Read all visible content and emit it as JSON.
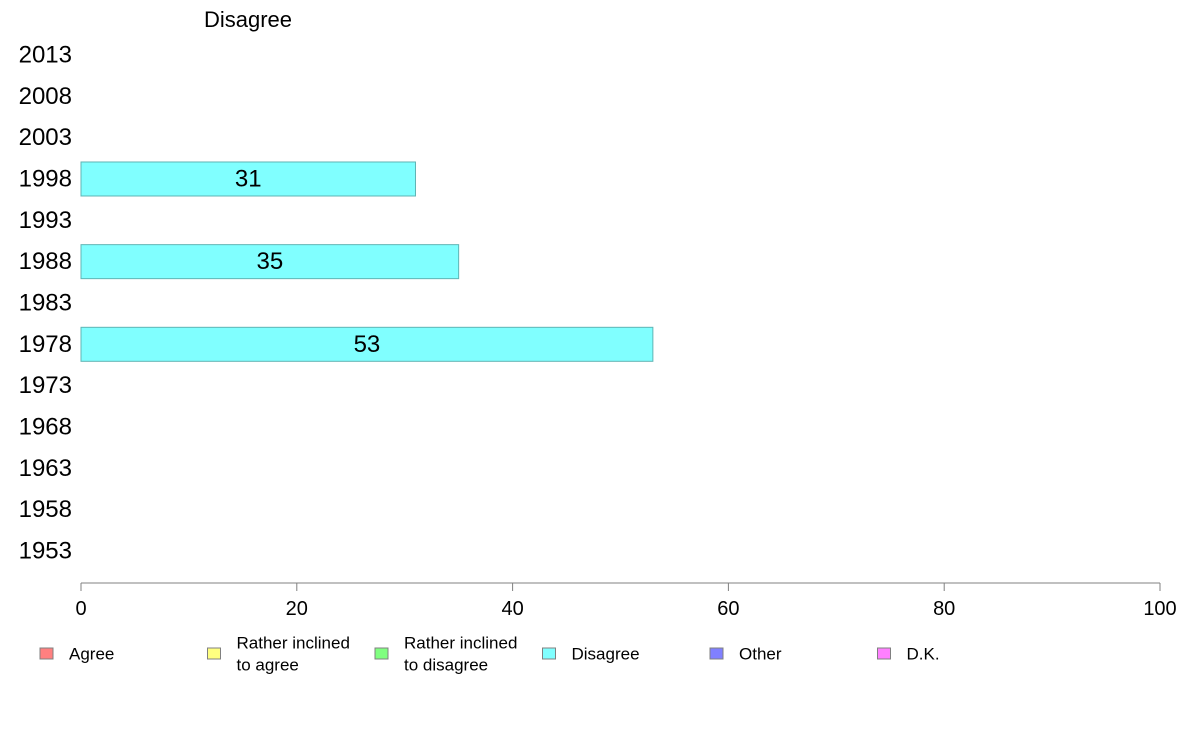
{
  "chart_data": {
    "type": "bar",
    "orientation": "horizontal",
    "title": "Disagree",
    "categories": [
      "2013",
      "2008",
      "2003",
      "1998",
      "1993",
      "1988",
      "1983",
      "1978",
      "1973",
      "1968",
      "1963",
      "1958",
      "1953"
    ],
    "series": [
      {
        "name": "Disagree",
        "values": [
          null,
          null,
          null,
          31,
          null,
          35,
          null,
          53,
          null,
          null,
          null,
          null,
          null
        ],
        "labels": [
          "",
          "",
          "",
          "31",
          "",
          "35",
          "",
          "53",
          "",
          "",
          "",
          "",
          ""
        ]
      }
    ],
    "xlim": [
      0,
      100
    ],
    "xticks": [
      "0",
      "20",
      "40",
      "60",
      "80",
      "100"
    ],
    "grid": false,
    "legend": {
      "position": "bottom",
      "items": [
        {
          "lines": [
            "Agree"
          ],
          "color": "#ff8080"
        },
        {
          "lines": [
            "Rather inclined",
            "to agree"
          ],
          "color": "#ffff80"
        },
        {
          "lines": [
            "Rather inclined",
            "to disagree"
          ],
          "color": "#80ff80"
        },
        {
          "lines": [
            "Disagree"
          ],
          "color": "#80ffff"
        },
        {
          "lines": [
            "Other"
          ],
          "color": "#8080ff"
        },
        {
          "lines": [
            "D.K."
          ],
          "color": "#ff80ff"
        }
      ]
    },
    "bar_color": "#80ffff",
    "bar_stroke": "#5fb4b4",
    "axis_color": "#808080"
  }
}
